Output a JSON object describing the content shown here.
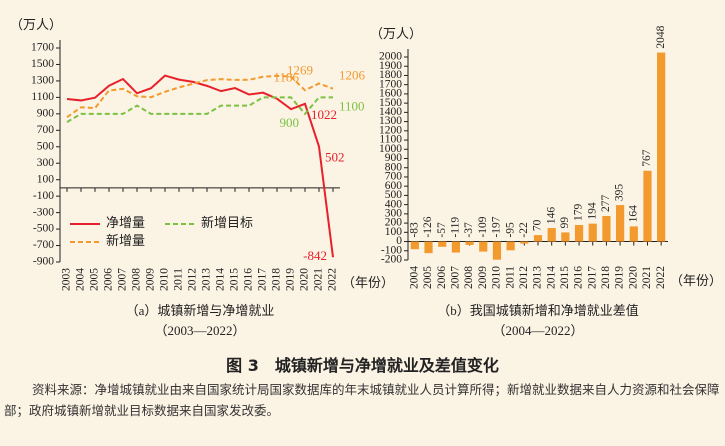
{
  "figure_title": "图 3　城镇新增与净增就业及差值变化",
  "source_note": "资料来源：净增城镇就业由来自国家统计局国家数据库的年末城镇就业人员计算所得；新增就业数据来自人力资源和社会保障部；政府城镇新增就业目标数据来自国家发改委。",
  "chart_data": [
    {
      "type": "line",
      "y_label": "（万人）",
      "x_label": "（年份）",
      "caption": [
        "（a）城镇新增与净增就业",
        "（2003—2022）"
      ],
      "categories": [
        "2003",
        "2004",
        "2005",
        "2006",
        "2007",
        "2008",
        "2009",
        "2010",
        "2011",
        "2012",
        "2013",
        "2014",
        "2015",
        "2016",
        "2017",
        "2018",
        "2019",
        "2020",
        "2021",
        "2022"
      ],
      "series": [
        {
          "name": "净增量",
          "color": "#e8202a",
          "dashed": false,
          "labeled": [
            17,
            18,
            19
          ],
          "values": [
            1080,
            1063,
            1096,
            1241,
            1323,
            1150,
            1211,
            1365,
            1316,
            1288,
            1240,
            1176,
            1213,
            1135,
            1157,
            1084,
            957,
            1022,
            502,
            -842
          ]
        },
        {
          "name": "新增目标",
          "color": "#7cc242",
          "dashed": true,
          "labeled": [
            17,
            19
          ],
          "values": [
            800,
            900,
            900,
            900,
            900,
            1000,
            900,
            900,
            900,
            900,
            900,
            1000,
            1000,
            1000,
            1100,
            1100,
            1100,
            900,
            1100,
            1100
          ]
        },
        {
          "name": "新增量",
          "color": "#f39a2e",
          "dashed": true,
          "labeled": [
            17,
            18,
            19
          ],
          "values": [
            859,
            980,
            970,
            1184,
            1204,
            1113,
            1102,
            1168,
            1221,
            1266,
            1310,
            1322,
            1312,
            1314,
            1351,
            1361,
            1352,
            1186,
            1269,
            1206
          ]
        }
      ],
      "ylim": [
        -900,
        1700
      ],
      "yticks": [
        -900,
        -700,
        -500,
        -300,
        -100,
        100,
        300,
        500,
        700,
        900,
        1100,
        1300,
        1500,
        1700
      ],
      "legend": "lower left",
      "grid": false
    },
    {
      "type": "bar",
      "y_label": "（万人）",
      "x_label": "（年份）",
      "caption": [
        "（b）我国城镇新增和净增就业差值",
        "（2004—2022）"
      ],
      "categories": [
        "2004",
        "2005",
        "2006",
        "2007",
        "2008",
        "2009",
        "2010",
        "2011",
        "2012",
        "2013",
        "2014",
        "2015",
        "2016",
        "2017",
        "2018",
        "2019",
        "2020",
        "2021",
        "2022"
      ],
      "values": [
        -83,
        -126,
        -57,
        -119,
        -37,
        -109,
        -197,
        -95,
        -22,
        70,
        146,
        99,
        179,
        194,
        277,
        395,
        164,
        767,
        2048
      ],
      "color": "#f39a2e",
      "show_values": true,
      "ylim": [
        -200,
        2000
      ],
      "yticks": [
        -200,
        -100,
        0,
        100,
        200,
        300,
        400,
        500,
        600,
        700,
        800,
        900,
        1000,
        1100,
        1200,
        1300,
        1400,
        1500,
        1600,
        1700,
        1800,
        1900,
        2000
      ],
      "grid": false
    }
  ]
}
